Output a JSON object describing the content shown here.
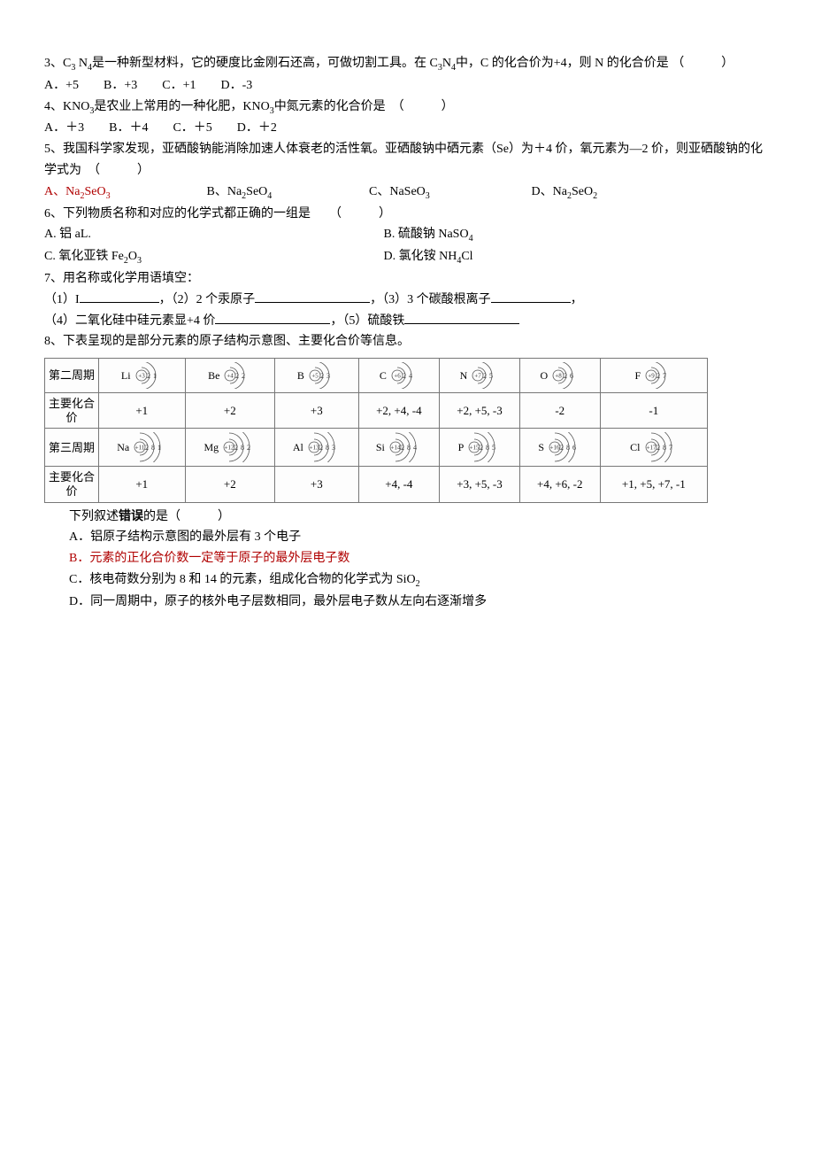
{
  "q3": {
    "stem_a": "3、C",
    "stem_b": " N",
    "stem_c": "是一种新型材料，它的硬度比金刚石还高，可做切割工具。在 C",
    "stem_d": "N",
    "stem_e": "中，C 的化合价为+4，则 N 的化合价是  （　　　）　　　A．+5　　B．+3　　C．+1　　D．-3",
    "s1": "3",
    "s2": "4",
    "s3": "3",
    "s4": "4"
  },
  "q4": {
    "stem_a": "4、KNO",
    "stem_b": "是农业上常用的一种化肥，KNO",
    "stem_c": "中氮元素的化合价是　（　　　）",
    "s1": "3",
    "s2": "3",
    "opts": "A．＋3　　B．＋4　　C．＋5　　D．＋2"
  },
  "q5": {
    "l1": "5、我国科学家发现，亚硒酸钠能消除加速人体衰老的活性氧。亚硒酸钠中硒元素（Se）为＋4 价，氧元素为—2 价，则亚硒酸钠的化学式为　（　　　）",
    "optA_a": "A、Na",
    "optA_b": "SeO",
    "optA_s1": "2",
    "optA_s2": "3",
    "optB_a": "B、Na",
    "optB_b": "SeO",
    "optB_s1": "2",
    "optB_s2": "4",
    "optC_a": "C、NaSeO",
    "optC_s": "3",
    "optD_a": "D、Na",
    "optD_b": "SeO",
    "optD_s1": "2",
    "optD_s2": "2"
  },
  "q6": {
    "stem": "6、下列物质名称和对应的化学式都正确的一组是　　（　　　）",
    "a": " A. 铝 aL.",
    "b_a": "B. 硫酸钠 NaSO",
    "b_s": "4",
    "c_a": " C. 氧化亚铁 Fe",
    "c_b": "O",
    "c_s1": "2",
    "c_s2": "3",
    "d_a": "D. 氯化铵 NH",
    "d_b": "Cl",
    "d_s": "4"
  },
  "q7": {
    "stem": "7、用名称或化学用语填空：",
    "p1": "（1）I",
    "p2": "，（2）2 个汞原子",
    "p3": "，（3）3 个碳酸根离子",
    "p4": "，",
    "p5": "（4）二氧化硅中硅元素显+4 价",
    "p6": "，（5）硫酸铁"
  },
  "q8": {
    "stem": "8、下表呈现的是部分元素的原子结构示意图、主要化合价等信息。",
    "rowlabels": [
      "第二周期",
      "主要化合价",
      "第三周期",
      "主要化合价"
    ],
    "period2": [
      {
        "sym": "Li",
        "z": "+3",
        "shells": [
          "2",
          "1"
        ]
      },
      {
        "sym": "Be",
        "z": "+4",
        "shells": [
          "2",
          "2"
        ]
      },
      {
        "sym": "B",
        "z": "+5",
        "shells": [
          "2",
          "3"
        ]
      },
      {
        "sym": "C",
        "z": "+6",
        "shells": [
          "2",
          "4"
        ]
      },
      {
        "sym": "N",
        "z": "+7",
        "shells": [
          "2",
          "5"
        ]
      },
      {
        "sym": "O",
        "z": "+8",
        "shells": [
          "2",
          "6"
        ]
      },
      {
        "sym": "F",
        "z": "+9",
        "shells": [
          "2",
          "7"
        ]
      }
    ],
    "val2": [
      "+1",
      "+2",
      "+3",
      "+2, +4, -4",
      "+2, +5, -3",
      "-2",
      "-1"
    ],
    "period3": [
      {
        "sym": "Na",
        "z": "+11",
        "shells": [
          "2",
          "8",
          "1"
        ]
      },
      {
        "sym": "Mg",
        "z": "+12",
        "shells": [
          "2",
          "8",
          "2"
        ]
      },
      {
        "sym": "Al",
        "z": "+13",
        "shells": [
          "2",
          "8",
          "3"
        ]
      },
      {
        "sym": "Si",
        "z": "+14",
        "shells": [
          "2",
          "8",
          "4"
        ]
      },
      {
        "sym": "P",
        "z": "+15",
        "shells": [
          "2",
          "8",
          "5"
        ]
      },
      {
        "sym": "S",
        "z": "+16",
        "shells": [
          "2",
          "8",
          "6"
        ]
      },
      {
        "sym": "Cl",
        "z": "+17",
        "shells": [
          "2",
          "8",
          "7"
        ]
      }
    ],
    "val3": [
      "+1",
      "+2",
      "+3",
      "+4, -4",
      "+3, +5, -3",
      "+4, +6, -2",
      "+1, +5, +7, -1"
    ],
    "prompt": "下列叙述错误的是（　　　）",
    "promptBold": "错误",
    "a": "A．铝原子结构示意图的最外层有 3 个电子",
    "b": "B．元素的正化合价数一定等于原子的最外层电子数",
    "c_a": "C．核电荷数分别为 8 和 14 的元素，组成化合物的化学式为 SiO",
    "c_s": "2",
    "d": "D．同一周期中，原子的核外电子层数相同，最外层电子数从左向右逐渐增多"
  },
  "svg": {
    "stroke": "#555",
    "textColor": "#333",
    "fontSize": "8"
  }
}
